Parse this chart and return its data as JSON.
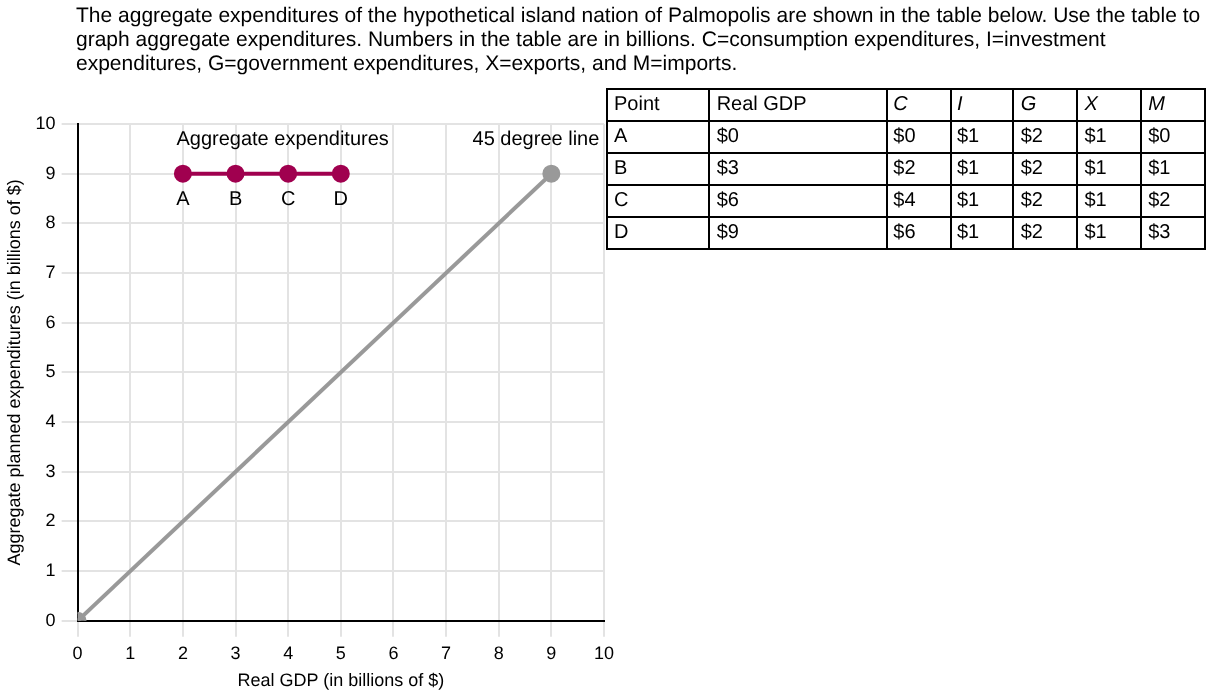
{
  "chart_data": {
    "type": "line",
    "title": "The aggregate expenditures of the hypothetical island nation of Palmopolis are shown in the table below. Use the table to graph aggregate expenditures. Numbers in the table are in billions. C=consumption expenditures, I=investment expenditures, G=government expenditures, X=exports, and M=imports.",
    "xlabel": "Real GDP (in billions of $)",
    "ylabel": "Aggregate planned expenditures (in billions of $)",
    "xlim": [
      0,
      10
    ],
    "xticks": [
      0,
      1,
      2,
      3,
      4,
      5,
      6,
      7,
      8,
      9,
      10
    ],
    "ylim": [
      0,
      10
    ],
    "yticks": [
      0,
      1,
      2,
      3,
      4,
      5,
      6,
      7,
      8,
      9,
      10
    ],
    "grid": true,
    "legend": false,
    "marker": "circle",
    "line_style": "solid",
    "series": [
      {
        "name": "Aggregate expenditures",
        "color": "#a0004f",
        "x": [
          2,
          3,
          4,
          5
        ],
        "values": [
          9,
          9,
          9,
          9
        ],
        "value_labels": [
          "A",
          "B",
          "C",
          "D"
        ]
      },
      {
        "name": "45 degree line",
        "color": "#999999",
        "x": [
          0,
          9
        ],
        "values": [
          0,
          9
        ]
      }
    ],
    "annotations": [
      "Point",
      "Real GDP",
      "C",
      "I",
      "G",
      "X",
      "M",
      "A",
      "$0",
      "$0",
      "$1",
      "$2",
      "$1",
      "$0",
      "B",
      "$3",
      "$2",
      "$1",
      "$2",
      "$1",
      "$1",
      "C",
      "$6",
      "$4",
      "$1",
      "$2",
      "$1",
      "$2",
      "D",
      "$9",
      "$6",
      "$1",
      "$2",
      "$1",
      "$3"
    ]
  }
}
